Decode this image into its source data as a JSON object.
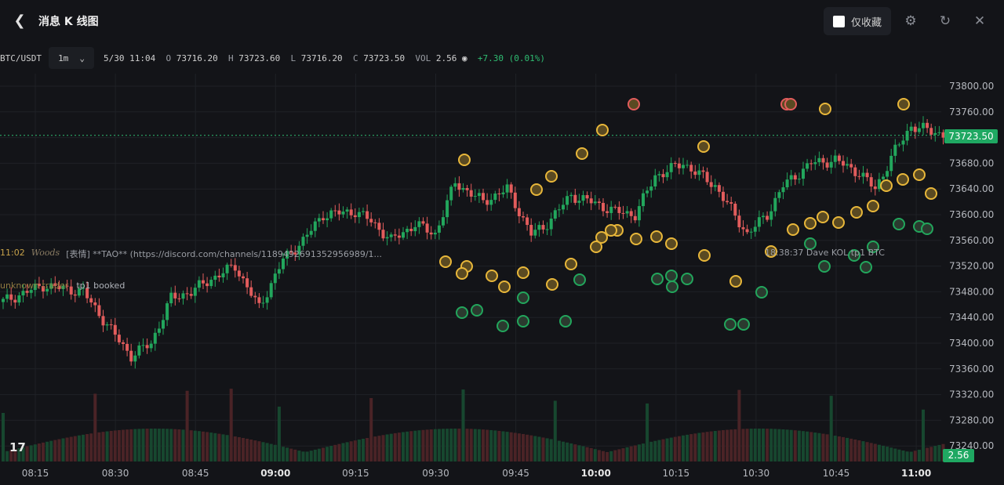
{
  "header": {
    "title": "消息 K 线图",
    "fav_label": "仅收藏",
    "icons": [
      "back-icon",
      "gear-icon",
      "refresh-icon",
      "close-icon"
    ]
  },
  "infobar": {
    "pair": "BTC/USDT",
    "interval": "1m",
    "datetime": "5/30 11:04",
    "o_key": "O",
    "o": "73716.20",
    "h_key": "H",
    "h": "73723.60",
    "l_key": "L",
    "l": "73716.20",
    "c_key": "C",
    "c": "73723.50",
    "vol_key": "VOL",
    "vol": "2.56",
    "change": "+7.30 (0.01%)"
  },
  "messages": {
    "m1_time": "11:02",
    "m1_user": "Woods",
    "m1_text": "[表情] **TAO** (https://discord.com/channels/118949269135295698​9/1...",
    "m2_user": "unknown trader",
    "m2_text": "tp1 booked",
    "m3_text": "18:38:37  Dave  KOL  tp1 BTC"
  },
  "colors": {
    "up": "#22a65c",
    "down": "#e25c5c",
    "background": "#131418",
    "marker_gold": "#e8b73a"
  },
  "chart_data": {
    "type": "candlestick",
    "y_axis_ticks": [
      "73800.00",
      "73760.00",
      "73720.00",
      "73680.00",
      "73640.00",
      "73600.00",
      "73560.00",
      "73520.00",
      "73480.00",
      "73440.00",
      "73400.00",
      "73360.00",
      "73320.00",
      "73280.00",
      "73240.00"
    ],
    "ylim": [
      73240,
      73800
    ],
    "x_axis_ticks": [
      {
        "label": "08:15",
        "bold": false
      },
      {
        "label": "08:30",
        "bold": false
      },
      {
        "label": "08:45",
        "bold": false
      },
      {
        "label": "09:00",
        "bold": true
      },
      {
        "label": "09:15",
        "bold": false
      },
      {
        "label": "09:30",
        "bold": false
      },
      {
        "label": "09:45",
        "bold": false
      },
      {
        "label": "10:00",
        "bold": true
      },
      {
        "label": "10:15",
        "bold": false
      },
      {
        "label": "10:30",
        "bold": false
      },
      {
        "label": "10:45",
        "bold": false
      },
      {
        "label": "11:00",
        "bold": true
      }
    ],
    "last_price": "73723.50",
    "last_volume": "2.56",
    "close_anchors": [
      [
        0,
        73465
      ],
      [
        10,
        73490
      ],
      [
        20,
        73480
      ],
      [
        27,
        73420
      ],
      [
        32,
        73380
      ],
      [
        37,
        73400
      ],
      [
        42,
        73470
      ],
      [
        47,
        73480
      ],
      [
        52,
        73500
      ],
      [
        58,
        73520
      ],
      [
        64,
        73455
      ],
      [
        70,
        73530
      ],
      [
        75,
        73560
      ],
      [
        80,
        73600
      ],
      [
        88,
        73605
      ],
      [
        92,
        73590
      ],
      [
        97,
        73560
      ],
      [
        103,
        73585
      ],
      [
        108,
        73570
      ],
      [
        113,
        73650
      ],
      [
        120,
        73620
      ],
      [
        126,
        73640
      ],
      [
        132,
        73570
      ],
      [
        135,
        73580
      ],
      [
        142,
        73630
      ],
      [
        147,
        73620
      ],
      [
        153,
        73605
      ],
      [
        158,
        73600
      ],
      [
        163,
        73660
      ],
      [
        170,
        73680
      ],
      [
        178,
        73645
      ],
      [
        186,
        73570
      ],
      [
        191,
        73600
      ],
      [
        195,
        73645
      ],
      [
        202,
        73680
      ],
      [
        208,
        73685
      ],
      [
        214,
        73665
      ],
      [
        218,
        73640
      ],
      [
        223,
        73700
      ],
      [
        227,
        73738
      ],
      [
        232,
        73730
      ],
      [
        235,
        73725
      ]
    ]
  }
}
